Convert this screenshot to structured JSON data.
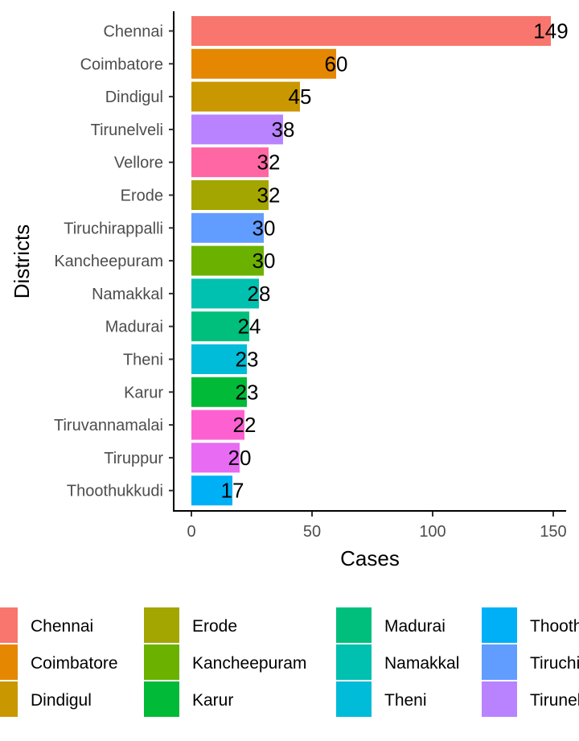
{
  "chart_data": {
    "type": "bar",
    "orientation": "horizontal",
    "xlabel": "Cases",
    "ylabel": "Districts",
    "xlim": [
      0,
      155
    ],
    "x_ticks": [
      0,
      50,
      100,
      150
    ],
    "grid": false,
    "legend_position": "bottom",
    "categories": [
      "Chennai",
      "Coimbatore",
      "Dindigul",
      "Tirunelveli",
      "Vellore",
      "Erode",
      "Tiruchirappalli",
      "Kancheepuram",
      "Namakkal",
      "Madurai",
      "Theni",
      "Karur",
      "Tiruvannamalai",
      "Tiruppur",
      "Thoothukkudi"
    ],
    "values": [
      149,
      60,
      45,
      38,
      32,
      32,
      30,
      30,
      28,
      24,
      23,
      23,
      22,
      20,
      17
    ],
    "data_labels": [
      "149",
      "60",
      "45",
      "38",
      "32",
      "32",
      "30",
      "30",
      "28",
      "24",
      "23",
      "23",
      "22",
      "20",
      "17"
    ],
    "colors": {
      "Chennai": "#F8766D",
      "Coimbatore": "#E58700",
      "Dindigul": "#C99800",
      "Erode": "#A3A500",
      "Kancheepuram": "#6BB100",
      "Karur": "#00BA38",
      "Madurai": "#00BF7D",
      "Namakkal": "#00C0AF",
      "Theni": "#00BCD8",
      "Thoothukkudi": "#00B0F6",
      "Tiruchirappalli": "#619CFF",
      "Tirunelveli": "#B983FF",
      "Tiruppur": "#E76BF3",
      "Tiruvannamalai": "#FD61D1",
      "Vellore": "#FF67A4"
    },
    "legend_entries": [
      "Chennai",
      "Coimbatore",
      "Dindigul",
      "Erode",
      "Kancheepuram",
      "Karur",
      "Madurai",
      "Namakkal",
      "Theni",
      "Thoothukkudi",
      "Tiruchirappalli",
      "Tirunelveli"
    ]
  }
}
